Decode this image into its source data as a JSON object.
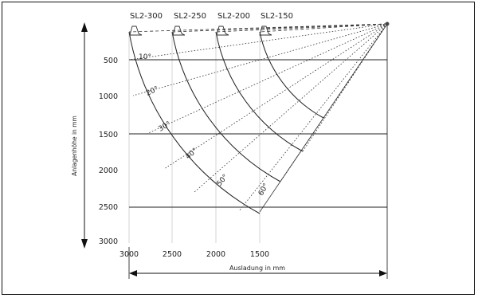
{
  "models": [
    "SL2-300",
    "SL2-250",
    "SL2-200",
    "SL2-150"
  ],
  "y_axis_label": "Anlagenhöhe in mm",
  "x_axis_label": "Ausladung in mm",
  "y_ticks": [
    "500",
    "1000",
    "1500",
    "2000",
    "2500",
    "3000"
  ],
  "x_ticks": [
    "3000",
    "2500",
    "2000",
    "1500"
  ],
  "angles": [
    "10°",
    "20°",
    "30°",
    "40°",
    "50°",
    "60°"
  ]
}
